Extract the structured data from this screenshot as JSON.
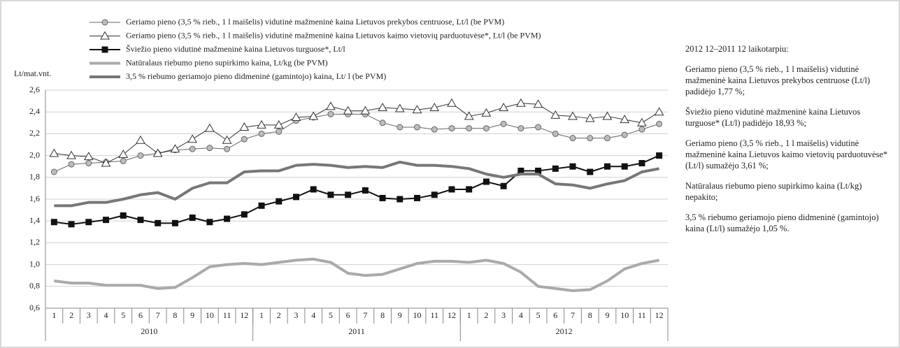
{
  "chart_data": {
    "type": "line",
    "y_label": "Lt/mat.vnt.",
    "ylim": [
      0.6,
      2.6
    ],
    "yticks": [
      {
        "value": 0.6,
        "label": "0,6"
      },
      {
        "value": 0.8,
        "label": "0,8"
      },
      {
        "value": 1.0,
        "label": "1,0"
      },
      {
        "value": 1.2,
        "label": "1,2"
      },
      {
        "value": 1.4,
        "label": "1,4"
      },
      {
        "value": 1.6,
        "label": "1,6"
      },
      {
        "value": 1.8,
        "label": "1,8"
      },
      {
        "value": 2.0,
        "label": "2,0"
      },
      {
        "value": 2.2,
        "label": "2,2"
      },
      {
        "value": 2.4,
        "label": "2,4"
      },
      {
        "value": 2.6,
        "label": "2,6"
      }
    ],
    "grid": true,
    "categories": [
      "1",
      "2",
      "3",
      "4",
      "5",
      "6",
      "7",
      "8",
      "9",
      "10",
      "11",
      "12",
      "1",
      "2",
      "3",
      "4",
      "5",
      "6",
      "7",
      "8",
      "9",
      "10",
      "11",
      "12",
      "1",
      "2",
      "3",
      "4",
      "5",
      "6",
      "7",
      "8",
      "9",
      "10",
      "11",
      "12"
    ],
    "year_groups": [
      "2010",
      "2011",
      "2012"
    ],
    "series": [
      {
        "name": "Geriamo pieno (3,5 % rieb., 1 l maišelis) vidutinė mažmeninė kaina Lietuvos prekybos centruose, Lt/l (be PVM)",
        "color": "#666666",
        "marker": "circle",
        "values": [
          1.85,
          1.92,
          1.93,
          1.94,
          1.95,
          2.0,
          2.02,
          2.05,
          2.06,
          2.07,
          2.06,
          2.15,
          2.2,
          2.22,
          2.32,
          2.35,
          2.38,
          2.38,
          2.38,
          2.3,
          2.26,
          2.26,
          2.24,
          2.25,
          2.25,
          2.25,
          2.29,
          2.25,
          2.26,
          2.2,
          2.16,
          2.16,
          2.16,
          2.19,
          2.24,
          2.29
        ]
      },
      {
        "name": "Geriamo pieno (3,5 % rieb., 1 l maišelis) vidutinė mažmeninė kaina Lietuvos kaimo vietovių parduotuvėse*, Lt/l (be PVM)",
        "color": "#333333",
        "marker": "triangle",
        "values": [
          2.02,
          2.0,
          1.99,
          1.93,
          2.01,
          2.14,
          2.02,
          2.06,
          2.15,
          2.25,
          2.14,
          2.26,
          2.28,
          2.28,
          2.35,
          2.36,
          2.45,
          2.41,
          2.41,
          2.44,
          2.43,
          2.42,
          2.44,
          2.48,
          2.36,
          2.39,
          2.44,
          2.48,
          2.47,
          2.37,
          2.36,
          2.34,
          2.36,
          2.33,
          2.3,
          2.4
        ]
      },
      {
        "name": "Šviežio pieno vidutinė mažmeninė kaina Lietuvos turguose*, Lt/l",
        "color": "#111111",
        "marker": "square",
        "values": [
          1.39,
          1.37,
          1.39,
          1.41,
          1.45,
          1.41,
          1.38,
          1.38,
          1.43,
          1.39,
          1.42,
          1.46,
          1.54,
          1.58,
          1.62,
          1.69,
          1.64,
          1.64,
          1.68,
          1.61,
          1.6,
          1.61,
          1.64,
          1.69,
          1.69,
          1.76,
          1.72,
          1.86,
          1.86,
          1.88,
          1.9,
          1.85,
          1.9,
          1.9,
          1.93,
          2.0
        ]
      },
      {
        "name": "Natūralaus riebumo pieno supirkimo kaina, Lt/kg (be PVM)",
        "color": "#aaaaaa",
        "marker": "none",
        "values": [
          0.85,
          0.83,
          0.83,
          0.81,
          0.81,
          0.81,
          0.78,
          0.79,
          0.88,
          0.98,
          1.0,
          1.01,
          1.0,
          1.02,
          1.04,
          1.05,
          1.02,
          0.92,
          0.9,
          0.91,
          0.96,
          1.01,
          1.03,
          1.03,
          1.02,
          1.04,
          1.01,
          0.93,
          0.8,
          0.78,
          0.76,
          0.77,
          0.85,
          0.96,
          1.01,
          1.04
        ]
      },
      {
        "name": "3,5 % riebumo geriamojo pieno didmeninė (gamintojo) kaina, Lt/ l (be PVM)",
        "color": "#777777",
        "marker": "none",
        "values": [
          1.54,
          1.54,
          1.57,
          1.57,
          1.6,
          1.64,
          1.66,
          1.6,
          1.7,
          1.75,
          1.75,
          1.85,
          1.86,
          1.86,
          1.91,
          1.92,
          1.91,
          1.89,
          1.9,
          1.89,
          1.94,
          1.91,
          1.91,
          1.9,
          1.88,
          1.83,
          1.8,
          1.83,
          1.83,
          1.74,
          1.73,
          1.7,
          1.74,
          1.77,
          1.85,
          1.88
        ]
      }
    ]
  },
  "notes": {
    "heading": "2012 12–2011 12 laikotarpiu:",
    "items": [
      "Geriamo pieno (3,5 % rieb., 1 l maišelis) vidutinė mažmeninė kaina Lietuvos prekybos centruose (Lt/l) padidėjo 1,77 %;",
      "Šviežio pieno vidutinė mažmeninė kaina Lietuvos turguose* (Lt/l) padidėjo 18,93 %;",
      "Geriamo pieno (3,5 % rieb., 1 l maišelis) vidutinė mažmeninė kaina Lietuvos kaimo vietovių parduotuvėse* (Lt/l) sumažėjo 3,61 %;",
      "Natūralaus riebumo pieno supirkimo kaina (Lt/kg) nepakito;",
      "3,5 % riebumo geriamojo pieno didmeninė (gamintojo) kaina (Lt/l) sumažėjo 1,05 %."
    ]
  }
}
